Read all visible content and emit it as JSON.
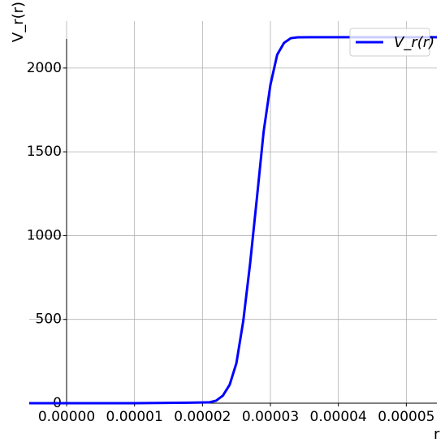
{
  "chart_data": {
    "type": "line",
    "title": "",
    "xlabel": "r",
    "ylabel": "V_r(r)",
    "xlim": [
      -5.5e-06,
      5.45e-05
    ],
    "ylim": [
      0,
      2280
    ],
    "x_ticks": [
      0.0,
      1e-05,
      2e-05,
      3e-05,
      4e-05,
      5e-05
    ],
    "x_tick_labels": [
      "0.00000",
      "0.00001",
      "0.00002",
      "0.00003",
      "0.00004",
      "0.00005"
    ],
    "y_ticks": [
      0,
      500,
      1000,
      1500,
      2000
    ],
    "y_tick_labels": [
      "0",
      "500",
      "1000",
      "1500",
      "2000"
    ],
    "grid": true,
    "legend_position": "top-right",
    "series": [
      {
        "name": "V_r(r)",
        "color": "#0000ff",
        "x": [
          -5.5e-06,
          0.0,
          1e-05,
          1.8e-05,
          2.1e-05,
          2.2e-05,
          2.3e-05,
          2.4e-05,
          2.5e-05,
          2.6e-05,
          2.7e-05,
          2.8e-05,
          2.9e-05,
          3e-05,
          3.1e-05,
          3.2e-05,
          3.3e-05,
          3.4e-05,
          3.6e-05,
          4e-05,
          5e-05,
          5.45e-05
        ],
        "y": [
          0,
          0,
          0,
          3,
          5,
          15,
          45,
          110,
          240,
          490,
          830,
          1220,
          1620,
          1900,
          2080,
          2150,
          2178,
          2183,
          2184,
          2184,
          2184,
          2184
        ]
      }
    ]
  }
}
